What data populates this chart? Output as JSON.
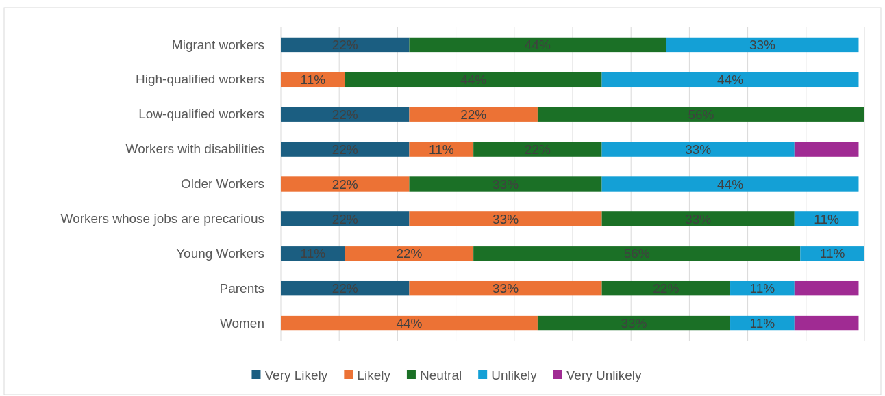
{
  "chart_data": {
    "type": "bar",
    "orientation": "horizontal",
    "stacked": true,
    "grid": "x",
    "legend": "bottom",
    "tick_labels": "y",
    "categories": [
      "Migrant workers",
      "High-qualified workers",
      "Low-qualified workers",
      "Workers with disabilities",
      "Older Workers",
      "Workers whose jobs are precarious",
      "Young Workers",
      "Parents",
      "Women"
    ],
    "xlim": [
      0,
      100
    ],
    "xticks": [
      {
        "value": 0,
        "label": null
      },
      {
        "value": 10,
        "label": null
      },
      {
        "value": 20,
        "label": null
      },
      {
        "value": 30,
        "label": null
      },
      {
        "value": 40,
        "label": null
      },
      {
        "value": 50,
        "label": null
      },
      {
        "value": 60,
        "label": null
      },
      {
        "value": 70,
        "label": null
      },
      {
        "value": 80,
        "label": null
      },
      {
        "value": 90,
        "label": null
      },
      {
        "value": 100,
        "label": null
      }
    ],
    "series": [
      {
        "name": "Very Likely",
        "color": "#1b5e81",
        "values": [
          22,
          null,
          22,
          22,
          null,
          22,
          11,
          22,
          null
        ],
        "value_labels": [
          "22%",
          null,
          "22%",
          "22%",
          null,
          "22%",
          "11%",
          "22%",
          null
        ]
      },
      {
        "name": "Likely",
        "color": "#ec7235",
        "values": [
          null,
          11,
          22,
          11,
          22,
          33,
          22,
          33,
          44
        ],
        "value_labels": [
          null,
          "11%",
          "22%",
          "11%",
          "22%",
          "33%",
          "22%",
          "33%",
          "44%"
        ]
      },
      {
        "name": "Neutral",
        "color": "#1b7026",
        "values": [
          44,
          44,
          56,
          22,
          33,
          33,
          56,
          22,
          33
        ],
        "value_labels": [
          "44%",
          "44%",
          "56%",
          "22%",
          "33%",
          "33%",
          "56%",
          "22%",
          "33%"
        ]
      },
      {
        "name": "Unlikely",
        "color": "#14a0d6",
        "values": [
          33,
          44,
          null,
          33,
          44,
          11,
          11,
          11,
          11
        ],
        "value_labels": [
          "33%",
          "44%",
          null,
          "33%",
          "44%",
          "11%",
          "11%",
          "11%",
          "11%"
        ]
      },
      {
        "name": "Very Unlikely",
        "color": "#a02b93",
        "values": [
          null,
          null,
          null,
          11,
          null,
          null,
          null,
          11,
          11
        ],
        "value_labels": [
          null,
          null,
          null,
          null,
          null,
          null,
          null,
          null,
          null
        ]
      }
    ]
  }
}
